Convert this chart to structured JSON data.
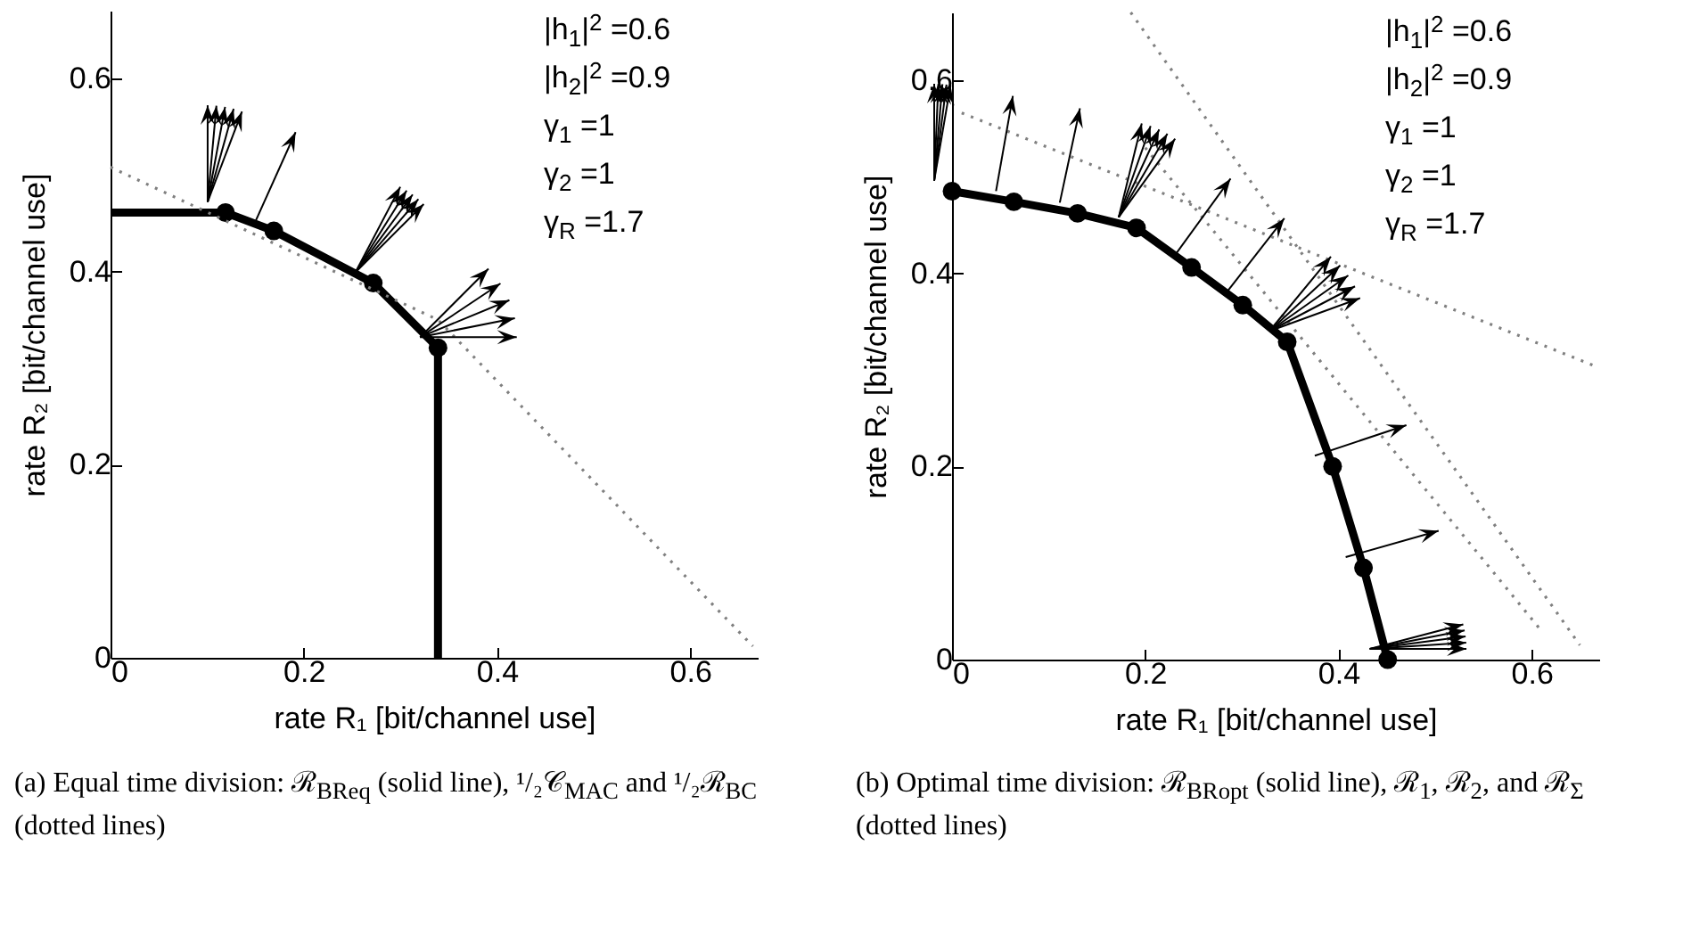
{
  "chart_data": [
    {
      "type": "line",
      "title": "(a) Equal time division: ℛ$_{BReq}$ (solid line), ¹/₂𝒞$_{MAC}$ and ¹/₂ℛ$_{BC}$ (dotted lines)",
      "xlabel": "rate R₁ [bit/channel use]",
      "ylabel": "rate R₂ [bit/channel use]",
      "annotations": [
        "|h$_{1}$|$^{2}$ =0.6",
        "|h$_{2}$|$^{2}$ =0.9",
        "γ$_{1}$ =1",
        "γ$_{2}$ =1",
        "γ$_{R}$ =1.7"
      ],
      "xlim": [
        0,
        0.67
      ],
      "ylim": [
        0,
        0.67
      ],
      "xticks": [
        0,
        0.2,
        0.4,
        0.6
      ],
      "yticks": [
        0,
        0.2,
        0.4,
        0.6
      ],
      "series": [
        {
          "type": "line",
          "color": "#000000",
          "line_style": "solid",
          "marker": "none",
          "x": [
            0,
            0.119,
            0.169,
            0.272,
            0.339,
            0.339
          ],
          "values": [
            0.461,
            0.461,
            0.442,
            0.388,
            0.321,
            0
          ]
        },
        {
          "type": "scatter",
          "color": "#000000",
          "marker": "circle",
          "x": [
            0.119,
            0.169,
            0.272,
            0.339
          ],
          "values": [
            0.461,
            0.442,
            0.388,
            0.321
          ]
        },
        {
          "type": "line",
          "color": "#808080",
          "line_style": "dotted",
          "marker": "none",
          "x": [
            0,
            0.339,
            0.665
          ],
          "values": [
            0.508,
            0.35,
            0.012
          ]
        }
      ]
    },
    {
      "type": "line",
      "title": "(b) Optimal time division: ℛ$_{BRopt}$ (solid line), ℛ$_{1}$, ℛ$_{2}$, and ℛ$_{Σ}$ (dotted lines)",
      "xlabel": "rate R₁ [bit/channel use]",
      "ylabel": "rate R₂ [bit/channel use]",
      "annotations": [
        "|h$_{1}$|$^{2}$ =0.6",
        "|h$_{2}$|$^{2}$ =0.9",
        "γ$_{1}$ =1",
        "γ$_{2}$ =1",
        "γ$_{R}$ =1.7"
      ],
      "xlim": [
        0,
        0.67
      ],
      "ylim": [
        0,
        0.67
      ],
      "xticks": [
        0,
        0.2,
        0.4,
        0.6
      ],
      "yticks": [
        0,
        0.2,
        0.4,
        0.6
      ],
      "series": [
        {
          "type": "line",
          "color": "#000000",
          "line_style": "solid",
          "marker": "circle",
          "x": [
            0,
            0.064,
            0.13,
            0.191,
            0.248,
            0.301,
            0.347,
            0.394,
            0.426,
            0.451
          ],
          "values": [
            0.485,
            0.474,
            0.462,
            0.447,
            0.406,
            0.367,
            0.329,
            0.2,
            0.095,
            0
          ]
        },
        {
          "type": "line",
          "color": "#808080",
          "line_style": "dotted",
          "marker": "none",
          "x": [
            0.185,
            0.65
          ],
          "values": [
            0.67,
            0.015
          ]
        },
        {
          "type": "line",
          "color": "#808080",
          "line_style": "dotted",
          "marker": "none",
          "x": [
            0.01,
            0.663
          ],
          "values": [
            0.566,
            0.305
          ]
        },
        {
          "type": "line",
          "color": "#808080",
          "line_style": "dotted",
          "marker": "none",
          "x": [
            0.2,
            0.61
          ],
          "values": [
            0.53,
            0.03
          ]
        }
      ]
    }
  ]
}
